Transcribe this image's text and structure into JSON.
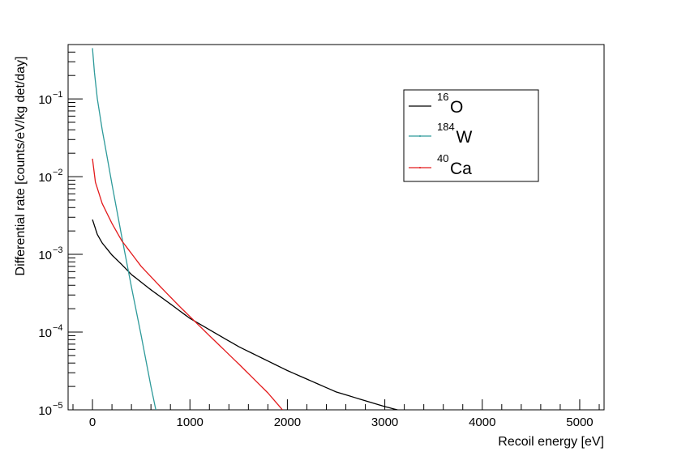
{
  "chart_data": {
    "type": "line",
    "title": "",
    "xlabel": "Recoil energy [eV]",
    "ylabel": "Differential rate [counts/eV/kg det/day]",
    "xlim": [
      -250,
      5250
    ],
    "ylim": [
      1e-05,
      0.5
    ],
    "yscale": "log",
    "grid": false,
    "legend_position": "top-right",
    "x_ticks": [
      0,
      1000,
      2000,
      3000,
      4000,
      5000
    ],
    "x_tick_labels": [
      "0",
      "1000",
      "2000",
      "3000",
      "4000",
      "5000"
    ],
    "y_ticks": [
      1e-05,
      0.0001,
      0.001,
      0.01,
      0.1
    ],
    "y_tick_labels": [
      {
        "base": "10",
        "exp": "−5"
      },
      {
        "base": "10",
        "exp": "−4"
      },
      {
        "base": "10",
        "exp": "−3"
      },
      {
        "base": "10",
        "exp": "−2"
      },
      {
        "base": "10",
        "exp": "−1"
      }
    ],
    "series": [
      {
        "name": "16O",
        "legend_sup": "16",
        "legend_main": "O",
        "color": "#000000",
        "x": [
          0,
          50,
          100,
          200,
          300,
          400,
          600,
          800,
          1000,
          1500,
          2000,
          2500,
          3000,
          3200
        ],
        "y": [
          0.0028,
          0.0018,
          0.0014,
          0.00098,
          0.00074,
          0.00055,
          0.00035,
          0.00023,
          0.00015,
          6.5e-05,
          3.2e-05,
          1.7e-05,
          1.1e-05,
          9.5e-06
        ]
      },
      {
        "name": "184W",
        "legend_sup": "184",
        "legend_main": "W",
        "color": "#2e9a9a",
        "x": [
          0,
          20,
          50,
          100,
          150,
          200,
          300,
          400,
          500,
          600,
          650
        ],
        "y": [
          0.45,
          0.22,
          0.1,
          0.04,
          0.018,
          0.008,
          0.0017,
          0.00038,
          9e-05,
          2e-05,
          1e-05
        ]
      },
      {
        "name": "40Ca",
        "legend_sup": "40",
        "legend_main": "Ca",
        "color": "#e31a1c",
        "x": [
          0,
          30,
          100,
          200,
          300,
          500,
          700,
          900,
          1200,
          1500,
          1800,
          1950
        ],
        "y": [
          0.017,
          0.0085,
          0.0045,
          0.0025,
          0.0015,
          0.0007,
          0.00038,
          0.00021,
          9e-05,
          3.9e-05,
          1.65e-05,
          1e-05
        ]
      }
    ]
  }
}
